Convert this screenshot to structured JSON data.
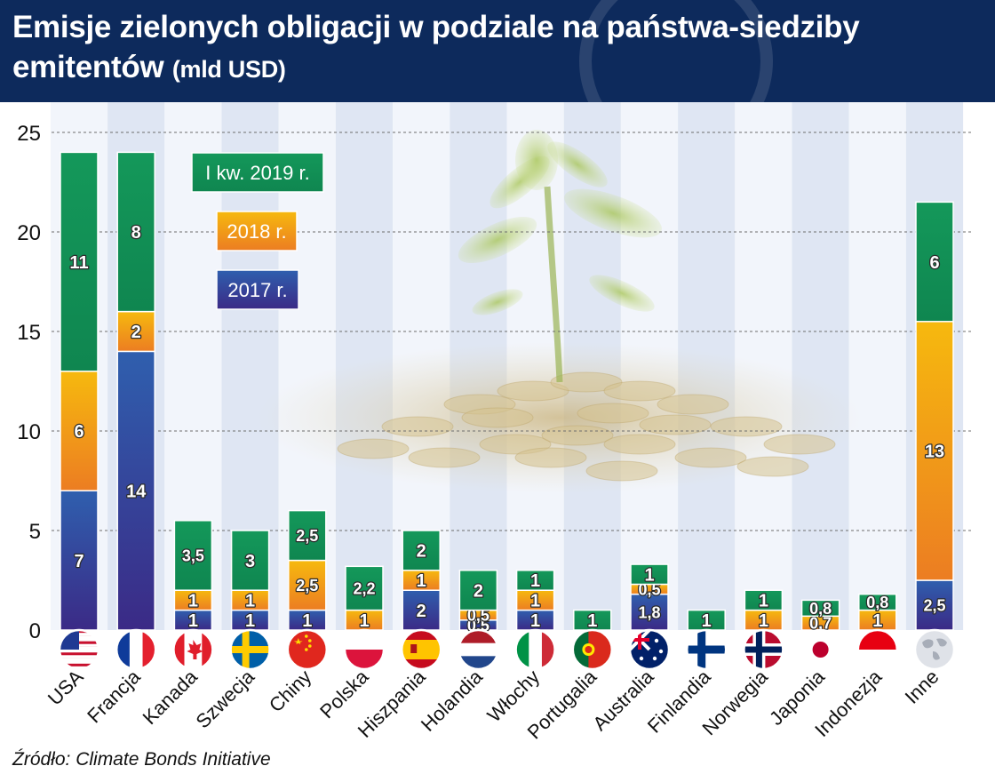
{
  "title": "Emisje zielonych obligacji w podziale na państwa-siedziby emitentów",
  "title_unit": "(mld USD)",
  "source": "Źródło: Climate Bonds Initiative",
  "colors": {
    "s2017": "#2f5aa8",
    "s2018": "#f19a1c",
    "q1_2019": "#138f57"
  },
  "chart_data": {
    "type": "bar",
    "stacked": true,
    "ylim": [
      0,
      25
    ],
    "yticks": [
      0,
      5,
      10,
      15,
      20,
      25
    ],
    "grid": true,
    "legend_position": "top-left",
    "categories": [
      "USA",
      "Francja",
      "Kanada",
      "Szwecja",
      "Chiny",
      "Polska",
      "Hiszpania",
      "Holandia",
      "Włochy",
      "Portugalia",
      "Australia",
      "Finlandia",
      "Norwegia",
      "Japonia",
      "Indonezja",
      "Inne"
    ],
    "series": [
      {
        "name": "2017 r.",
        "values": [
          7,
          14,
          1,
          1,
          1,
          null,
          2,
          0.5,
          1,
          null,
          1.8,
          null,
          null,
          null,
          null,
          2.5
        ],
        "labels": [
          "7",
          "14",
          "1",
          "1",
          "1",
          "",
          "2",
          "0,5",
          "1",
          "",
          "1,8",
          "",
          "",
          "",
          "",
          "2,5"
        ]
      },
      {
        "name": "2018 r.",
        "values": [
          6,
          2,
          1,
          1,
          2.5,
          1,
          1,
          0.5,
          1,
          null,
          0.5,
          null,
          1,
          0.7,
          1,
          13
        ],
        "labels": [
          "6",
          "2",
          "1",
          "1",
          "2,5",
          "1",
          "1",
          "0,5",
          "1",
          "",
          "0,5",
          "",
          "1",
          "0,7",
          "1",
          "13"
        ]
      },
      {
        "name": "I kw. 2019 r.",
        "values": [
          11,
          8,
          3.5,
          3,
          2.5,
          2.2,
          2,
          2,
          1,
          1,
          1,
          1,
          1,
          0.8,
          0.8,
          6
        ],
        "labels": [
          "11",
          "8",
          "3,5",
          "3",
          "2,5",
          "2,2",
          "2",
          "2",
          "1",
          "1",
          "1",
          "1",
          "1",
          "0,8",
          "0,8",
          "6"
        ]
      }
    ],
    "flag_icons": [
      "us-flag-icon",
      "france-flag-icon",
      "canada-flag-icon",
      "sweden-flag-icon",
      "china-flag-icon",
      "poland-flag-icon",
      "spain-flag-icon",
      "netherlands-flag-icon",
      "italy-flag-icon",
      "portugal-flag-icon",
      "australia-flag-icon",
      "finland-flag-icon",
      "norway-flag-icon",
      "japan-flag-icon",
      "indonesia-flag-icon",
      "globe-icon"
    ]
  }
}
